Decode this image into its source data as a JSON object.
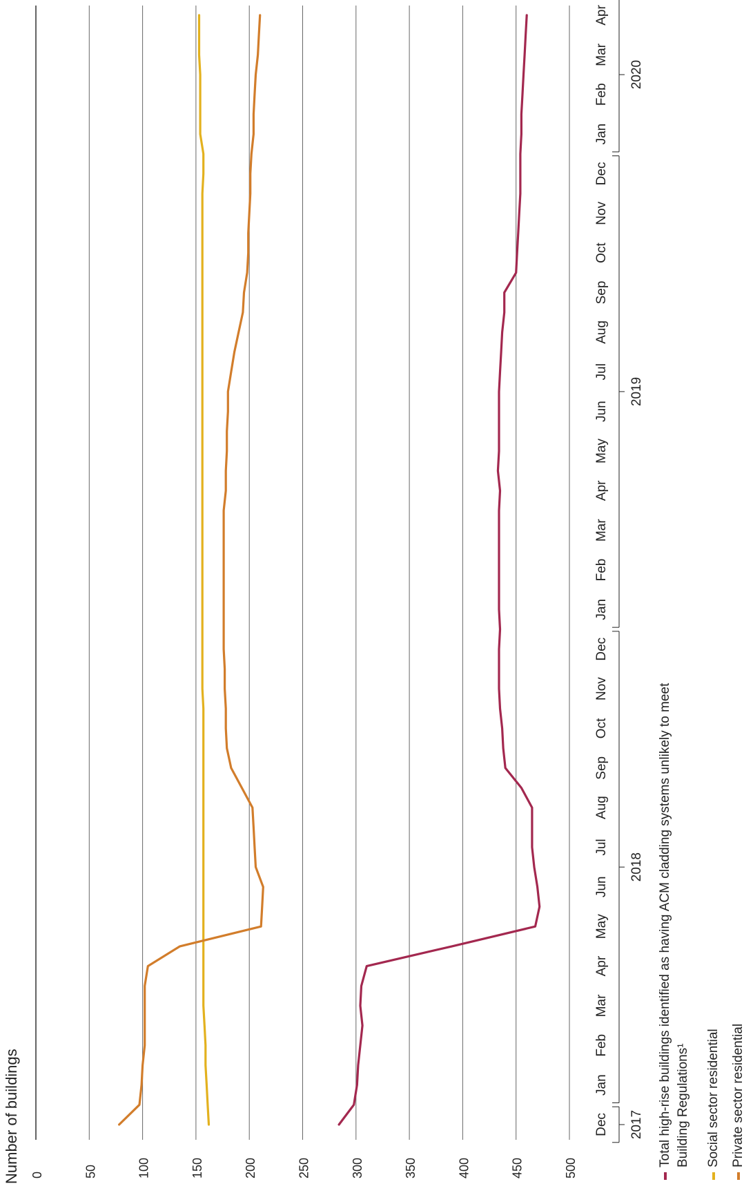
{
  "chart_data": {
    "type": "line",
    "ylabel": "Number of buildings",
    "ylim": [
      0,
      500
    ],
    "yticks": [
      "0",
      "50",
      "100",
      "150",
      "200",
      "250",
      "300",
      "350",
      "400",
      "450",
      "500"
    ],
    "grid": true,
    "months": [
      "Dec",
      "Jan",
      "Feb",
      "Mar",
      "Apr",
      "May",
      "Jun",
      "Jul",
      "Aug",
      "Sep",
      "Oct",
      "Nov",
      "Dec",
      "Jan",
      "Feb",
      "Mar",
      "Apr",
      "May",
      "Jun",
      "Jul",
      "Aug",
      "Sep",
      "Oct",
      "Nov",
      "Dec",
      "Jan",
      "Feb",
      "Mar",
      "Apr"
    ],
    "years": [
      {
        "label": "2017",
        "first_month": 0,
        "last_month": 0
      },
      {
        "label": "2018",
        "first_month": 1,
        "last_month": 12
      },
      {
        "label": "2019",
        "first_month": 13,
        "last_month": 24
      },
      {
        "label": "2020",
        "first_month": 25,
        "last_month": 28
      }
    ],
    "x": [
      0,
      0.5,
      1,
      1.5,
      2,
      2.5,
      3,
      3.5,
      4,
      4.5,
      5,
      5.5,
      6,
      6.5,
      7,
      7.5,
      8,
      8.5,
      9,
      9.5,
      10,
      10.5,
      11,
      11.5,
      12,
      12.5,
      13,
      13.5,
      14,
      14.5,
      15,
      15.5,
      16,
      16.5,
      17,
      17.5,
      18,
      18.5,
      19,
      19.5,
      20,
      20.5,
      21,
      21.5,
      22,
      22.5,
      23,
      23.5,
      24,
      24.5,
      25,
      25.5,
      26,
      26.5,
      27,
      27.5,
      28
    ],
    "series": [
      {
        "name": "Total high-rise buildings identified as having ACM cladding systems unlikely to meet Building Regulations¹",
        "color": "#a3284f",
        "values": [
          284,
          298,
          301,
          302,
          304,
          306,
          304,
          305,
          310,
          390,
          468,
          472,
          470,
          467,
          465,
          465,
          465,
          455,
          440,
          438,
          437,
          435,
          434,
          434,
          434,
          435,
          434,
          434,
          434,
          434,
          434,
          434,
          435,
          433,
          434,
          434,
          434,
          434,
          435,
          436,
          437,
          439,
          439,
          450,
          451,
          452,
          453,
          454,
          454,
          454,
          455,
          455,
          456,
          457,
          458,
          459,
          460
        ]
      },
      {
        "name": "Social sector residential",
        "color": "#e3b11e",
        "values": [
          162,
          161,
          160,
          159,
          159,
          158,
          157,
          157,
          157,
          157,
          157,
          157,
          157,
          157,
          157,
          157,
          157,
          157,
          157,
          157,
          157,
          157,
          156,
          156,
          156,
          156,
          156,
          156,
          156,
          156,
          156,
          156,
          156,
          156,
          156,
          156,
          156,
          156,
          156,
          156,
          156,
          156,
          156,
          156,
          156,
          156,
          156,
          156,
          157,
          157,
          154,
          154,
          154,
          154,
          153,
          153,
          153
        ]
      },
      {
        "name": "Private sector residential",
        "color": "#d27d2b",
        "values": [
          78,
          97,
          99,
          100,
          102,
          102,
          102,
          102,
          105,
          135,
          211,
          212,
          213,
          206,
          205,
          204,
          203,
          193,
          183,
          179,
          178,
          178,
          177,
          177,
          176,
          176,
          176,
          176,
          176,
          176,
          176,
          176,
          178,
          178,
          179,
          179,
          180,
          180,
          183,
          186,
          190,
          194,
          195,
          198,
          199,
          199,
          200,
          201,
          201,
          202,
          204,
          204,
          205,
          206,
          208,
          209,
          210
        ]
      }
    ]
  }
}
